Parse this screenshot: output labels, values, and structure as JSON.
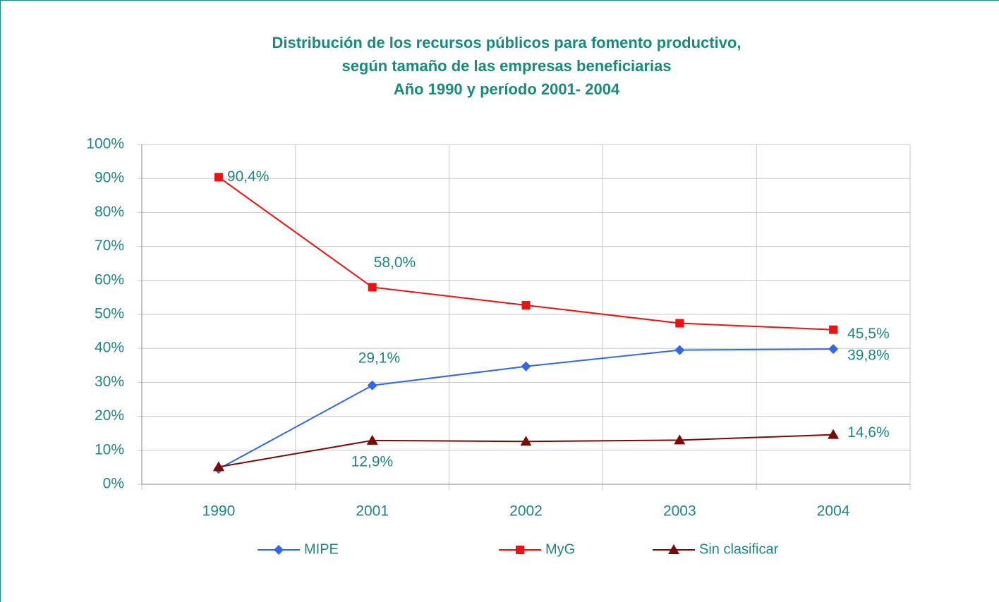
{
  "chart_data": {
    "type": "line",
    "title": [
      "Distribución de los recursos públicos para fomento productivo,",
      "según tamaño de las empresas beneficiarias",
      "Año 1990 y período 2001- 2004"
    ],
    "categories": [
      "1990",
      "2001",
      "2002",
      "2003",
      "2004"
    ],
    "series": [
      {
        "name": "MIPE",
        "color": "#3366ee",
        "marker": "diamond",
        "values": [
          4.5,
          29.1,
          34.7,
          39.5,
          39.8
        ],
        "value_labels": [
          null,
          "29,1%",
          null,
          null,
          "39,8%"
        ]
      },
      {
        "name": "MyG",
        "color": "#ee1111",
        "marker": "square",
        "values": [
          90.4,
          58.0,
          52.7,
          47.4,
          45.5
        ],
        "value_labels": [
          "90,4%",
          "58,0%",
          null,
          null,
          "45,5%"
        ]
      },
      {
        "name": "Sin clasificar",
        "color": "#7a0a0a",
        "marker": "triangle",
        "values": [
          5.1,
          12.9,
          12.6,
          13.0,
          14.6
        ],
        "value_labels": [
          null,
          "12,9%",
          null,
          null,
          "14,6%"
        ]
      }
    ],
    "ylim": [
      0,
      100
    ],
    "yticks": [
      {
        "value": 0,
        "label": "0%"
      },
      {
        "value": 10,
        "label": "10%"
      },
      {
        "value": 20,
        "label": "20%"
      },
      {
        "value": 30,
        "label": "30%"
      },
      {
        "value": 40,
        "label": "40%"
      },
      {
        "value": 50,
        "label": "50%"
      },
      {
        "value": 60,
        "label": "60%"
      },
      {
        "value": 70,
        "label": "70%"
      },
      {
        "value": 80,
        "label": "80%"
      },
      {
        "value": 90,
        "label": "90%"
      },
      {
        "value": 100,
        "label": "100%"
      }
    ],
    "grid": true,
    "legend": "bottom"
  }
}
